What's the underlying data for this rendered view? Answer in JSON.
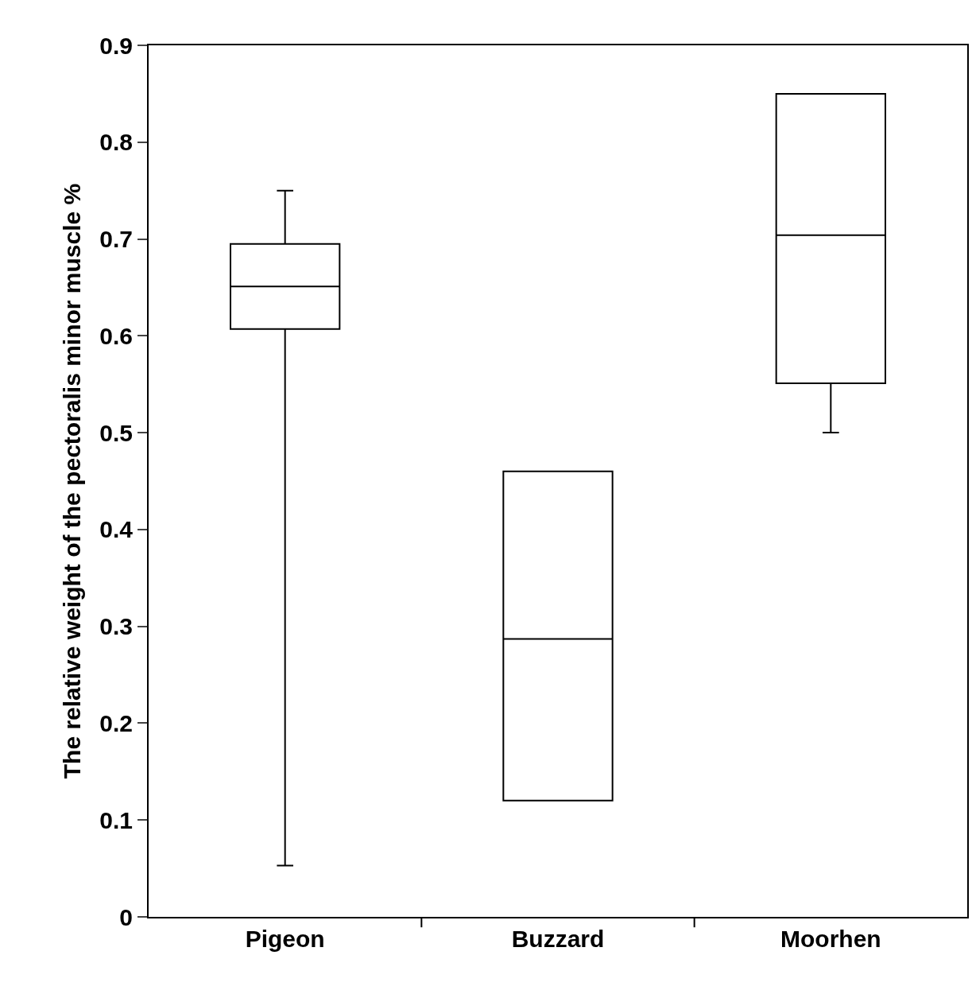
{
  "chart_data": {
    "type": "box",
    "ylabel": "The relative weight of the pectoralis minor muscle %",
    "categories": [
      "Pigeon",
      "Buzzard",
      "Moorhen"
    ],
    "boxes": [
      {
        "low": 0.053,
        "q1": 0.607,
        "median": 0.651,
        "q3": 0.695,
        "high": 0.75
      },
      {
        "low": 0.12,
        "q1": 0.12,
        "median": 0.287,
        "q3": 0.46,
        "high": 0.46
      },
      {
        "low": 0.5,
        "q1": 0.551,
        "median": 0.704,
        "q3": 0.85,
        "high": 0.85
      }
    ],
    "color": "#000000",
    "ylim": [
      0,
      0.9
    ],
    "yticks": [
      0,
      0.1,
      0.2,
      0.3,
      0.4,
      0.5,
      0.6,
      0.7,
      0.8,
      0.9
    ],
    "legend": false
  }
}
